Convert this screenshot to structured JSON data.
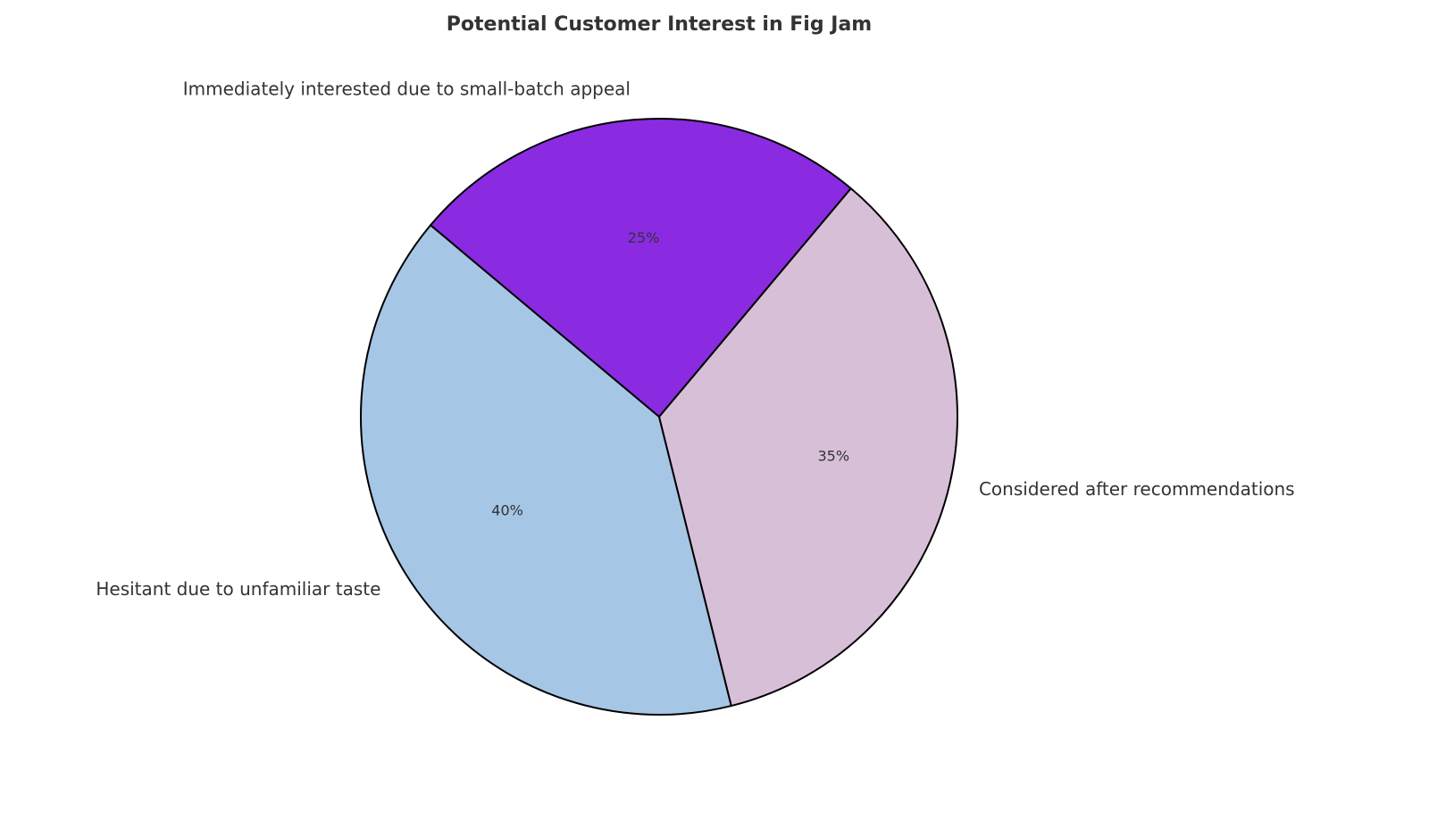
{
  "chart_data": {
    "type": "pie",
    "title": "Potential Customer Interest in Fig Jam",
    "categories": [
      "Hesitant due to unfamiliar taste",
      "Considered after recommendations",
      "Immediately interested due to small-batch appeal"
    ],
    "values": [
      40,
      35,
      25
    ],
    "value_labels": [
      "40%",
      "35%",
      "25%"
    ],
    "colors": [
      "#a6c6e6",
      "#d8bfd8",
      "#8a2be2"
    ],
    "startangle": 140,
    "counterclock": true
  }
}
